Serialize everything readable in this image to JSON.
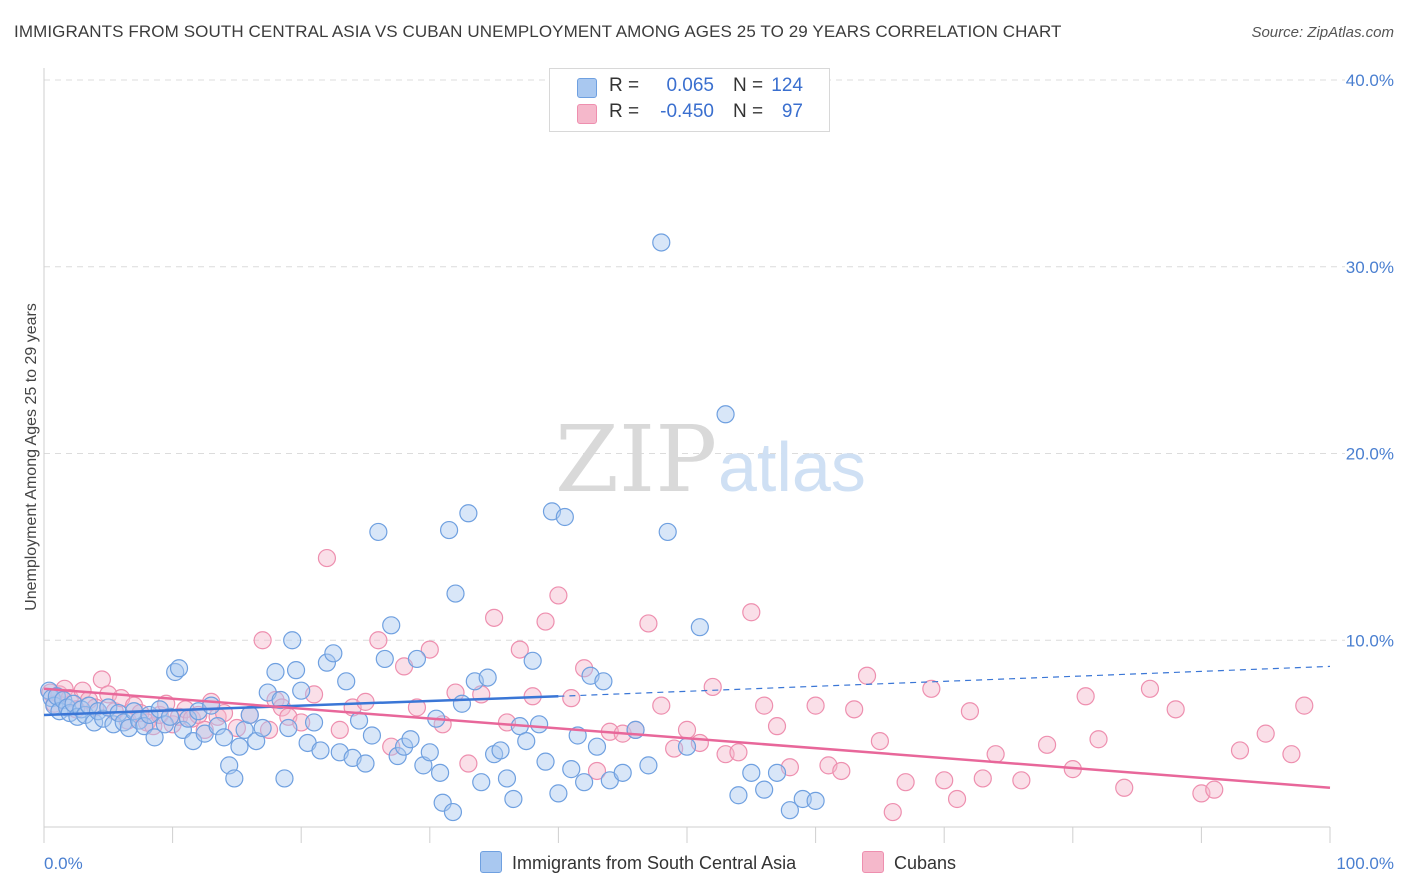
{
  "title": "IMMIGRANTS FROM SOUTH CENTRAL ASIA VS CUBAN UNEMPLOYMENT AMONG AGES 25 TO 29 YEARS CORRELATION CHART",
  "source": "Source: ZipAtlas.com",
  "watermark": {
    "zip": "ZIP",
    "atlas": "atlas"
  },
  "legend": {
    "rows": [
      {
        "r_label": "R =",
        "r_value": "0.065",
        "n_label": "N =",
        "n_value": "124"
      },
      {
        "r_label": "R =",
        "r_value": "-0.450",
        "n_label": "N =",
        "n_value": "97"
      }
    ]
  },
  "bottom_legend": {
    "series1": "Immigrants from South Central Asia",
    "series2": "Cubans"
  },
  "colors": {
    "blue_fill": "#a9c8f0",
    "blue_stroke": "#6fa0e0",
    "blue_line": "#3a76d6",
    "pink_fill": "#f5b8cb",
    "pink_stroke": "#ee8faf",
    "pink_line": "#e8679a",
    "tick_text": "#4a7fd0"
  },
  "chart_data": {
    "type": "scatter",
    "title": "IMMIGRANTS FROM SOUTH CENTRAL ASIA VS CUBAN UNEMPLOYMENT AMONG AGES 25 TO 29 YEARS CORRELATION CHART",
    "xlabel": "",
    "ylabel": "Unemployment Among Ages 25 to 29 years",
    "xlim": [
      0,
      100
    ],
    "ylim": [
      0,
      40
    ],
    "x_tick_labels": [
      "0.0%",
      "100.0%"
    ],
    "y_ticks": [
      10,
      20,
      30,
      40
    ],
    "y_tick_labels": [
      "10.0%",
      "20.0%",
      "30.0%",
      "40.0%"
    ],
    "grid": true,
    "series": [
      {
        "name": "Immigrants from South Central Asia",
        "color": "#a9c8f0",
        "trend": {
          "x": [
            0,
            40,
            100
          ],
          "y": [
            6.0,
            7.0,
            8.6
          ],
          "solid_to_x": 40
        },
        "points": [
          [
            0.4,
            7.3
          ],
          [
            0.6,
            6.9
          ],
          [
            0.8,
            6.5
          ],
          [
            1.0,
            7.0
          ],
          [
            1.2,
            6.2
          ],
          [
            1.5,
            6.8
          ],
          [
            1.8,
            6.4
          ],
          [
            2.0,
            6.1
          ],
          [
            2.3,
            6.6
          ],
          [
            2.6,
            5.9
          ],
          [
            2.9,
            6.3
          ],
          [
            3.2,
            6.0
          ],
          [
            3.5,
            6.5
          ],
          [
            3.9,
            5.6
          ],
          [
            4.2,
            6.2
          ],
          [
            4.6,
            5.8
          ],
          [
            5.0,
            6.4
          ],
          [
            5.4,
            5.5
          ],
          [
            5.8,
            6.1
          ],
          [
            6.2,
            5.6
          ],
          [
            6.6,
            5.3
          ],
          [
            7.0,
            6.2
          ],
          [
            7.4,
            5.7
          ],
          [
            7.8,
            5.4
          ],
          [
            8.2,
            6.0
          ],
          [
            8.6,
            4.8
          ],
          [
            9.0,
            6.3
          ],
          [
            9.4,
            5.5
          ],
          [
            9.8,
            5.9
          ],
          [
            10.2,
            8.3
          ],
          [
            10.5,
            8.5
          ],
          [
            10.8,
            5.2
          ],
          [
            11.2,
            5.8
          ],
          [
            11.6,
            4.6
          ],
          [
            12.0,
            6.2
          ],
          [
            12.5,
            5.0
          ],
          [
            13.0,
            6.5
          ],
          [
            13.5,
            5.4
          ],
          [
            14.0,
            4.8
          ],
          [
            14.4,
            3.3
          ],
          [
            14.8,
            2.6
          ],
          [
            15.2,
            4.3
          ],
          [
            15.6,
            5.2
          ],
          [
            16.0,
            6.0
          ],
          [
            16.5,
            4.6
          ],
          [
            17.0,
            5.3
          ],
          [
            17.4,
            7.2
          ],
          [
            18.0,
            8.3
          ],
          [
            18.4,
            6.8
          ],
          [
            18.7,
            2.6
          ],
          [
            19.0,
            5.3
          ],
          [
            19.3,
            10.0
          ],
          [
            19.6,
            8.4
          ],
          [
            20.0,
            7.3
          ],
          [
            20.5,
            4.5
          ],
          [
            21.0,
            5.6
          ],
          [
            21.5,
            4.1
          ],
          [
            22.0,
            8.8
          ],
          [
            22.5,
            9.3
          ],
          [
            23.0,
            4.0
          ],
          [
            23.5,
            7.8
          ],
          [
            24.0,
            3.7
          ],
          [
            24.5,
            5.7
          ],
          [
            25.0,
            3.4
          ],
          [
            25.5,
            4.9
          ],
          [
            26.0,
            15.8
          ],
          [
            26.5,
            9.0
          ],
          [
            27.0,
            10.8
          ],
          [
            27.5,
            3.8
          ],
          [
            28.0,
            4.3
          ],
          [
            28.5,
            4.7
          ],
          [
            29.0,
            9.0
          ],
          [
            29.5,
            3.3
          ],
          [
            30.0,
            4.0
          ],
          [
            30.5,
            5.8
          ],
          [
            30.8,
            2.9
          ],
          [
            31.0,
            1.3
          ],
          [
            31.5,
            15.9
          ],
          [
            31.8,
            0.8
          ],
          [
            32.0,
            12.5
          ],
          [
            32.5,
            6.6
          ],
          [
            33.0,
            16.8
          ],
          [
            33.5,
            7.8
          ],
          [
            34.0,
            2.4
          ],
          [
            34.5,
            8.0
          ],
          [
            35.0,
            3.9
          ],
          [
            35.5,
            4.1
          ],
          [
            36.0,
            2.6
          ],
          [
            36.5,
            1.5
          ],
          [
            37.0,
            5.4
          ],
          [
            37.5,
            4.6
          ],
          [
            38.0,
            8.9
          ],
          [
            38.5,
            5.5
          ],
          [
            39.0,
            3.5
          ],
          [
            39.5,
            16.9
          ],
          [
            40.0,
            1.8
          ],
          [
            40.5,
            16.6
          ],
          [
            41.0,
            3.1
          ],
          [
            41.5,
            4.9
          ],
          [
            42.0,
            2.4
          ],
          [
            42.5,
            8.1
          ],
          [
            43.0,
            4.3
          ],
          [
            43.5,
            7.8
          ],
          [
            44.0,
            2.5
          ],
          [
            45.0,
            2.9
          ],
          [
            46.0,
            5.2
          ],
          [
            47.0,
            3.3
          ],
          [
            48.0,
            31.3
          ],
          [
            48.5,
            15.8
          ],
          [
            50.0,
            4.3
          ],
          [
            51.0,
            10.7
          ],
          [
            53.0,
            22.1
          ],
          [
            54.0,
            1.7
          ],
          [
            55.0,
            2.9
          ],
          [
            56.0,
            2.0
          ],
          [
            57.0,
            2.9
          ],
          [
            58.0,
            0.9
          ],
          [
            59.0,
            1.5
          ],
          [
            60.0,
            1.4
          ]
        ]
      },
      {
        "name": "Cubans",
        "color": "#f5b8cb",
        "trend": {
          "x": [
            0,
            100
          ],
          "y": [
            7.4,
            2.1
          ]
        },
        "points": [
          [
            0.5,
            7.2
          ],
          [
            0.8,
            6.6
          ],
          [
            1.2,
            7.1
          ],
          [
            1.6,
            7.4
          ],
          [
            2.0,
            6.9
          ],
          [
            2.5,
            6.3
          ],
          [
            3.0,
            7.3
          ],
          [
            3.5,
            6.8
          ],
          [
            4.0,
            6.4
          ],
          [
            4.5,
            7.9
          ],
          [
            5.0,
            7.1
          ],
          [
            5.5,
            6.2
          ],
          [
            6.0,
            6.9
          ],
          [
            6.5,
            5.7
          ],
          [
            7.0,
            6.5
          ],
          [
            7.5,
            6.1
          ],
          [
            8.0,
            5.6
          ],
          [
            8.5,
            5.4
          ],
          [
            9.0,
            6.0
          ],
          [
            9.5,
            6.6
          ],
          [
            10.0,
            5.5
          ],
          [
            10.5,
            5.9
          ],
          [
            11.0,
            6.3
          ],
          [
            11.5,
            5.8
          ],
          [
            12.0,
            6.0
          ],
          [
            12.5,
            5.2
          ],
          [
            13.0,
            6.7
          ],
          [
            13.5,
            5.9
          ],
          [
            14.0,
            6.1
          ],
          [
            15.0,
            5.3
          ],
          [
            16.0,
            6.0
          ],
          [
            17.0,
            10.0
          ],
          [
            17.5,
            5.2
          ],
          [
            18.0,
            6.8
          ],
          [
            18.5,
            6.4
          ],
          [
            19.0,
            5.9
          ],
          [
            20.0,
            5.6
          ],
          [
            21.0,
            7.1
          ],
          [
            22.0,
            14.4
          ],
          [
            23.0,
            5.2
          ],
          [
            24.0,
            6.4
          ],
          [
            25.0,
            6.7
          ],
          [
            26.0,
            10.0
          ],
          [
            27.0,
            4.3
          ],
          [
            28.0,
            8.6
          ],
          [
            29.0,
            6.4
          ],
          [
            30.0,
            9.5
          ],
          [
            31.0,
            5.5
          ],
          [
            32.0,
            7.2
          ],
          [
            33.0,
            3.4
          ],
          [
            34.0,
            7.1
          ],
          [
            35.0,
            11.2
          ],
          [
            36.0,
            5.6
          ],
          [
            37.0,
            9.5
          ],
          [
            38.0,
            7.0
          ],
          [
            39.0,
            11.0
          ],
          [
            40.0,
            12.4
          ],
          [
            41.0,
            6.9
          ],
          [
            42.0,
            8.5
          ],
          [
            43.0,
            3.0
          ],
          [
            44.0,
            5.1
          ],
          [
            45.0,
            5.0
          ],
          [
            46.0,
            5.2
          ],
          [
            47.0,
            10.9
          ],
          [
            48.0,
            6.5
          ],
          [
            49.0,
            4.2
          ],
          [
            50.0,
            5.2
          ],
          [
            51.0,
            4.5
          ],
          [
            52.0,
            7.5
          ],
          [
            53.0,
            3.9
          ],
          [
            54.0,
            4.0
          ],
          [
            55.0,
            11.5
          ],
          [
            56.0,
            6.5
          ],
          [
            57.0,
            5.4
          ],
          [
            58.0,
            3.2
          ],
          [
            60.0,
            6.5
          ],
          [
            61.0,
            3.3
          ],
          [
            62.0,
            3.0
          ],
          [
            63.0,
            6.3
          ],
          [
            64.0,
            8.1
          ],
          [
            65.0,
            4.6
          ],
          [
            66.0,
            0.8
          ],
          [
            67.0,
            2.4
          ],
          [
            69.0,
            7.4
          ],
          [
            70.0,
            2.5
          ],
          [
            71.0,
            1.5
          ],
          [
            72.0,
            6.2
          ],
          [
            73.0,
            2.6
          ],
          [
            74.0,
            3.9
          ],
          [
            76.0,
            2.5
          ],
          [
            78.0,
            4.4
          ],
          [
            80.0,
            3.1
          ],
          [
            81.0,
            7.0
          ],
          [
            82.0,
            4.7
          ],
          [
            84.0,
            2.1
          ],
          [
            86.0,
            7.4
          ],
          [
            88.0,
            6.3
          ],
          [
            90.0,
            1.8
          ],
          [
            91.0,
            2.0
          ],
          [
            93.0,
            4.1
          ],
          [
            95.0,
            5.0
          ],
          [
            97.0,
            3.9
          ],
          [
            98.0,
            6.5
          ]
        ]
      }
    ]
  }
}
